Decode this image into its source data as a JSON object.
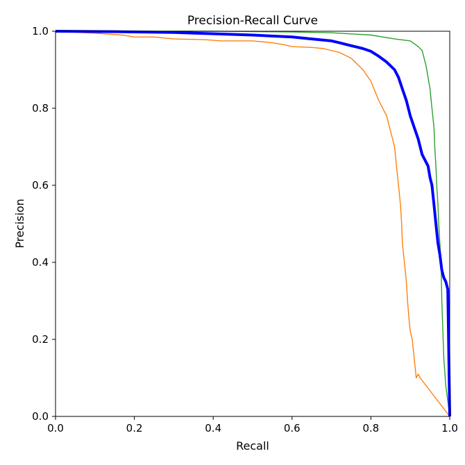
{
  "chart_data": {
    "type": "line",
    "title": "Precision-Recall Curve",
    "xlabel": "Recall",
    "ylabel": "Precision",
    "xlim": [
      0.0,
      1.0
    ],
    "ylim": [
      0.0,
      1.0
    ],
    "x_ticks": [
      "0.0",
      "0.2",
      "0.4",
      "0.6",
      "0.8",
      "1.0"
    ],
    "y_ticks": [
      "0.0",
      "0.2",
      "0.4",
      "0.6",
      "0.8",
      "1.0"
    ],
    "grid": false,
    "legend": "none",
    "series": [
      {
        "color": "#ff7f0e",
        "thick": false,
        "x": [
          0.0,
          0.1,
          0.17,
          0.2,
          0.25,
          0.3,
          0.38,
          0.42,
          0.5,
          0.55,
          0.58,
          0.6,
          0.65,
          0.68,
          0.72,
          0.75,
          0.78,
          0.8,
          0.82,
          0.84,
          0.86,
          0.865,
          0.87,
          0.875,
          0.878,
          0.88,
          0.885,
          0.89,
          0.893,
          0.897,
          0.9,
          0.905,
          0.91,
          0.915,
          0.92,
          0.925,
          1.0
        ],
        "y": [
          1.0,
          0.995,
          0.99,
          0.985,
          0.985,
          0.98,
          0.978,
          0.975,
          0.975,
          0.97,
          0.965,
          0.96,
          0.958,
          0.955,
          0.945,
          0.93,
          0.9,
          0.87,
          0.82,
          0.78,
          0.7,
          0.65,
          0.6,
          0.55,
          0.5,
          0.45,
          0.4,
          0.35,
          0.3,
          0.25,
          0.22,
          0.2,
          0.15,
          0.1,
          0.11,
          0.1,
          0.0
        ]
      },
      {
        "color": "#2ca02c",
        "thick": false,
        "x": [
          0.0,
          0.2,
          0.4,
          0.6,
          0.7,
          0.8,
          0.86,
          0.9,
          0.92,
          0.93,
          0.935,
          0.94,
          0.945,
          0.95,
          0.955,
          0.96,
          0.962,
          0.965,
          0.967,
          0.97,
          0.972,
          0.975,
          0.978,
          0.98,
          0.985,
          0.99,
          0.995,
          1.0
        ],
        "y": [
          1.0,
          1.0,
          1.0,
          0.998,
          0.996,
          0.99,
          0.98,
          0.975,
          0.96,
          0.95,
          0.93,
          0.91,
          0.88,
          0.85,
          0.8,
          0.75,
          0.7,
          0.65,
          0.6,
          0.55,
          0.5,
          0.45,
          0.4,
          0.3,
          0.15,
          0.08,
          0.04,
          0.0
        ]
      },
      {
        "color": "#0000ff",
        "thick": true,
        "x": [
          0.0,
          0.15,
          0.3,
          0.5,
          0.6,
          0.65,
          0.7,
          0.72,
          0.74,
          0.76,
          0.78,
          0.8,
          0.82,
          0.84,
          0.86,
          0.87,
          0.88,
          0.89,
          0.9,
          0.91,
          0.92,
          0.93,
          0.94,
          0.945,
          0.95,
          0.955,
          0.96,
          0.965,
          0.97,
          0.975,
          0.98,
          0.985,
          0.99,
          0.995,
          1.0
        ],
        "y": [
          1.0,
          0.999,
          0.997,
          0.99,
          0.985,
          0.98,
          0.975,
          0.97,
          0.965,
          0.96,
          0.955,
          0.948,
          0.935,
          0.92,
          0.9,
          0.88,
          0.85,
          0.82,
          0.78,
          0.75,
          0.72,
          0.68,
          0.66,
          0.65,
          0.62,
          0.6,
          0.55,
          0.5,
          0.45,
          0.42,
          0.38,
          0.36,
          0.35,
          0.33,
          0.0
        ]
      }
    ]
  }
}
